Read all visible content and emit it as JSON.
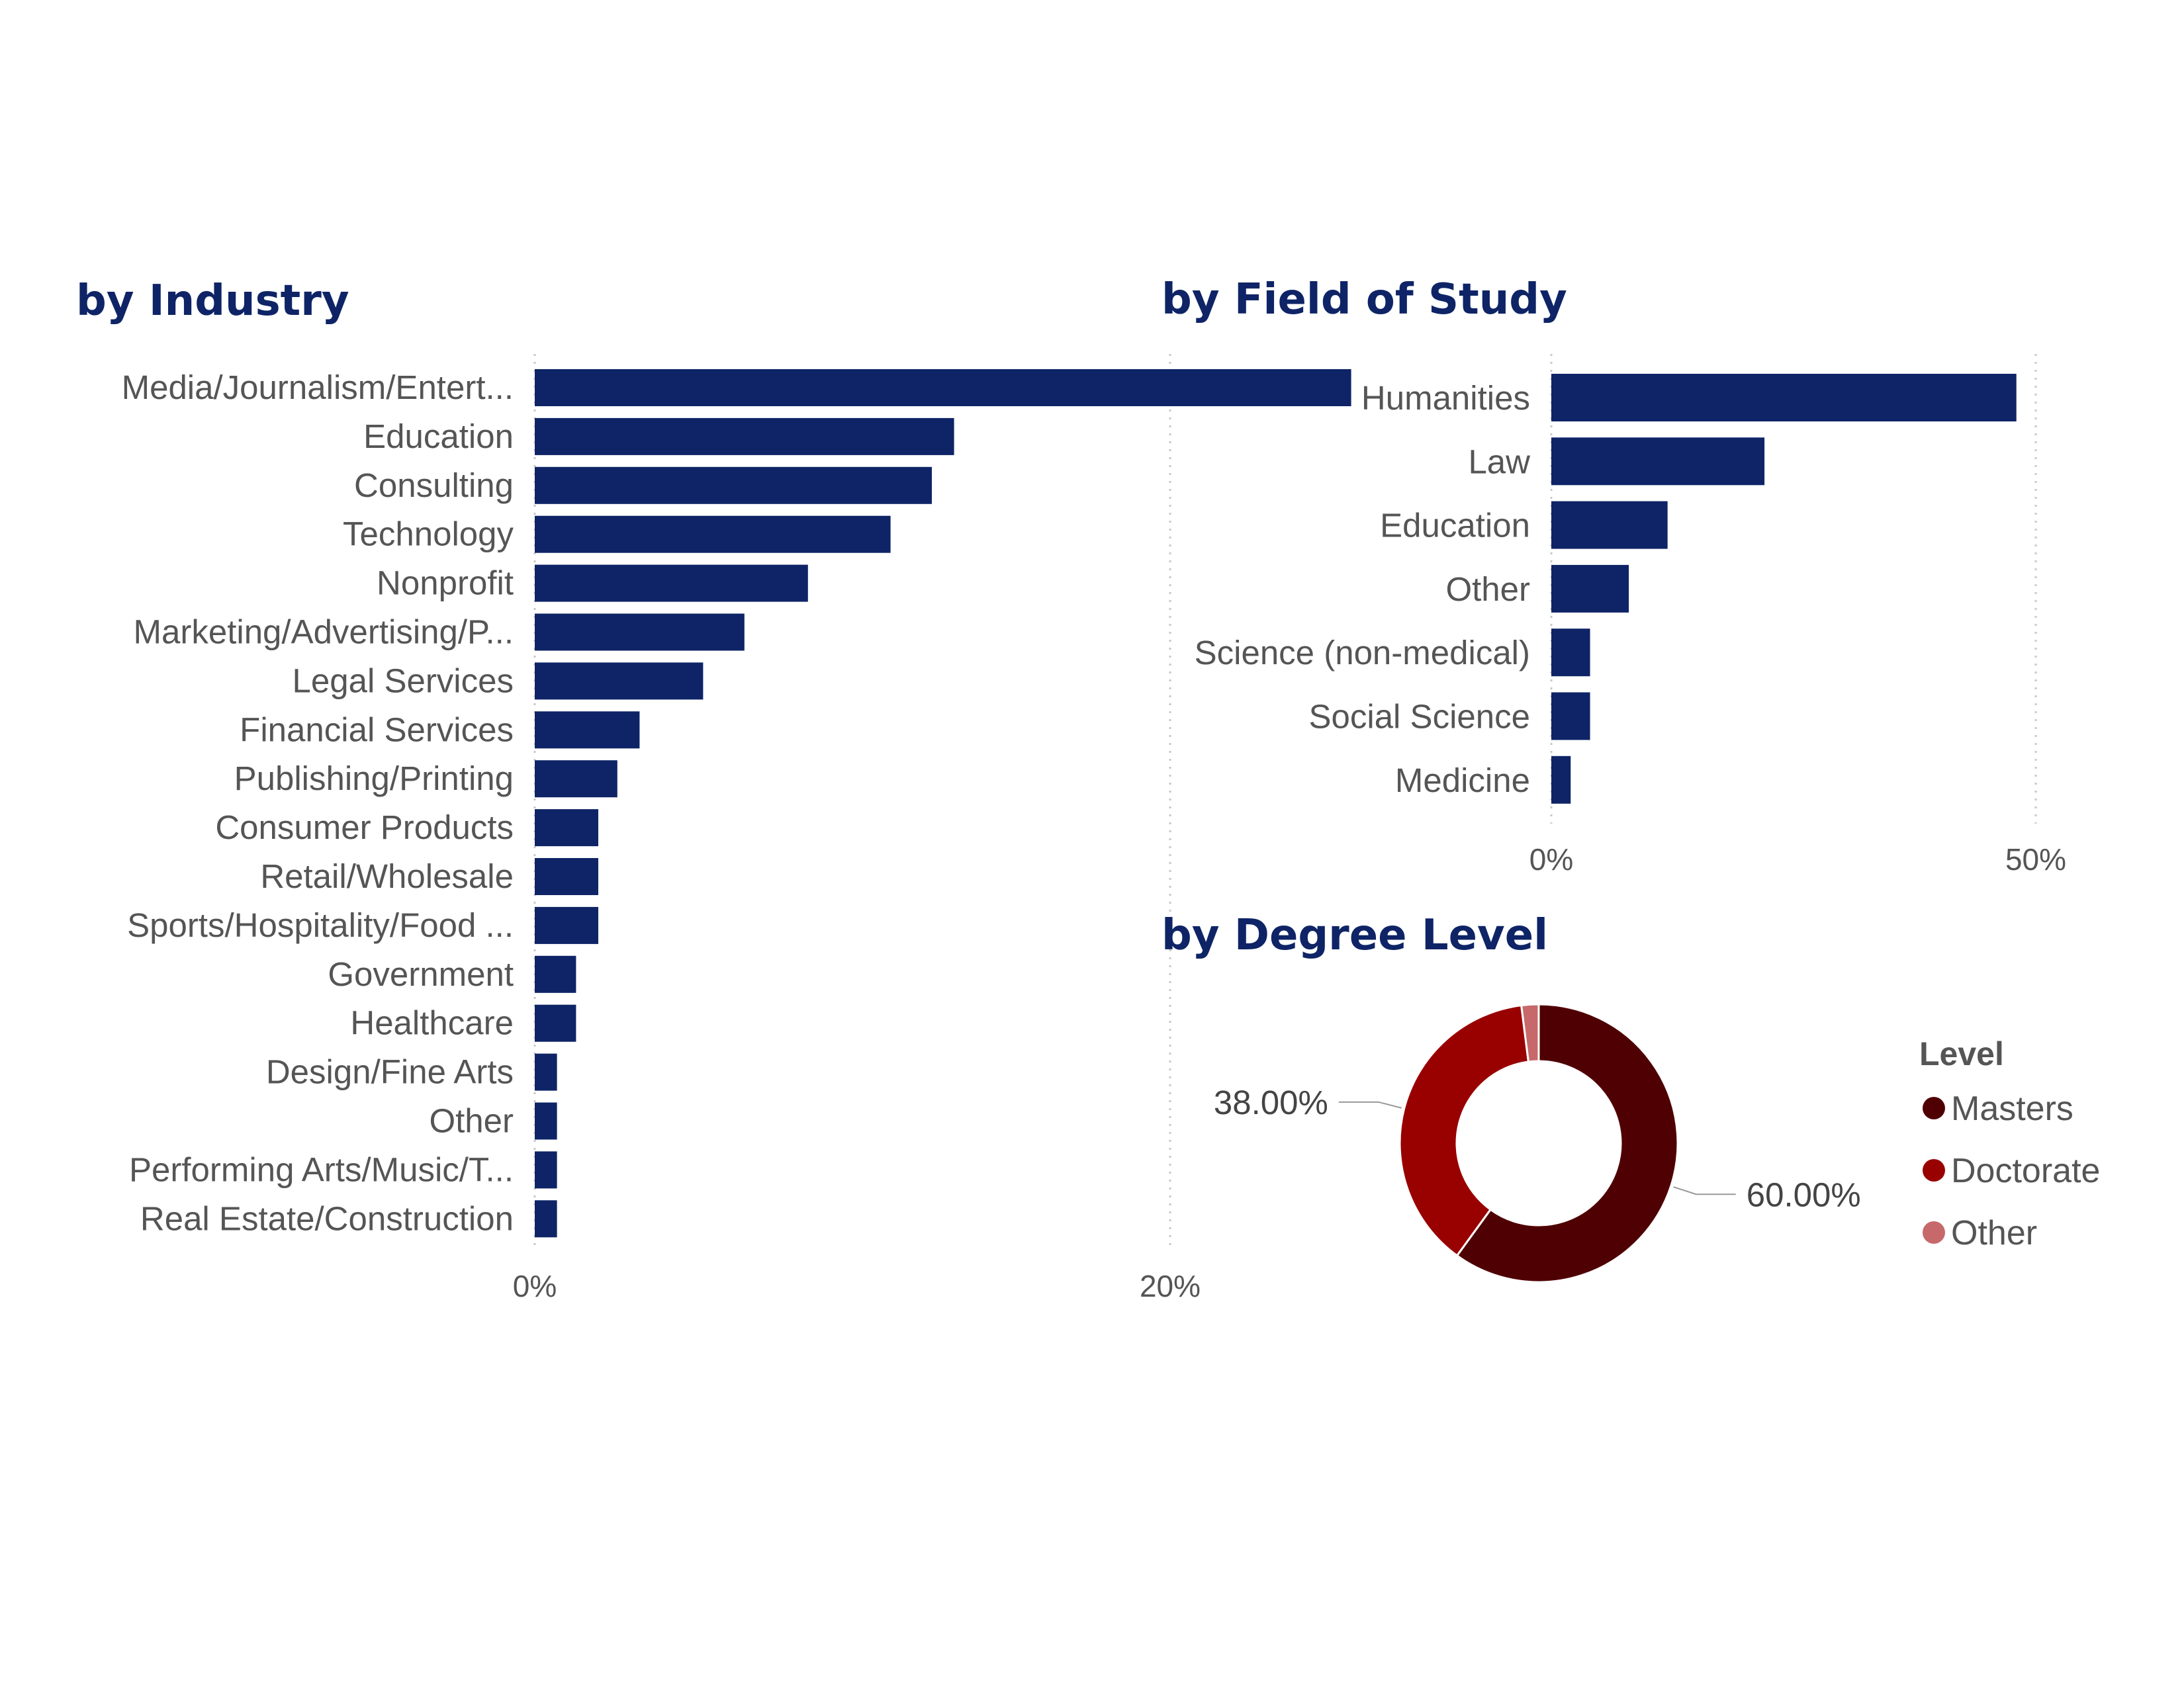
{
  "chart_data": [
    {
      "type": "bar",
      "orientation": "horizontal",
      "title": "by Industry",
      "categories": [
        "Media/Journalism/Entert...",
        "Education",
        "Consulting",
        "Technology",
        "Nonprofit",
        "Marketing/Advertising/P...",
        "Legal Services",
        "Financial Services",
        "Publishing/Printing",
        "Consumer Products",
        "Retail/Wholesale",
        "Sports/Hospitality/Food ...",
        "Government",
        "Healthcare",
        "Design/Fine Arts",
        "Other",
        "Performing Arts/Music/T...",
        "Real Estate/Construction"
      ],
      "values": [
        25.7,
        13.2,
        12.5,
        11.2,
        8.6,
        6.6,
        5.3,
        3.3,
        2.6,
        2.0,
        2.0,
        2.0,
        1.3,
        1.3,
        0.7,
        0.7,
        0.7,
        0.7
      ],
      "xlim": [
        0,
        30
      ],
      "xticks": [
        0,
        20
      ],
      "xtick_labels": [
        "0%",
        "20%"
      ],
      "grid": true,
      "color": "#0e2466"
    },
    {
      "type": "bar",
      "orientation": "horizontal",
      "title": "by Field of Study",
      "categories": [
        "Humanities",
        "Law",
        "Education",
        "Other",
        "Science (non-medical)",
        "Social Science",
        "Medicine"
      ],
      "values": [
        48,
        22,
        12,
        8,
        4,
        4,
        2
      ],
      "xlim": [
        0,
        50
      ],
      "xticks": [
        0,
        50
      ],
      "xtick_labels": [
        "0%",
        "50%"
      ],
      "grid": true,
      "color": "#0e2466"
    },
    {
      "type": "pie",
      "variant": "donut",
      "title": "by Degree Level",
      "legend_title": "Level",
      "legend_position": "right",
      "labels": [
        "Masters",
        "Doctorate",
        "Other"
      ],
      "values": [
        60,
        38,
        2
      ],
      "colors": [
        "#4f0003",
        "#990000",
        "#c7696a"
      ],
      "data_labels": [
        "60.00%",
        "38.00%",
        ""
      ]
    }
  ]
}
